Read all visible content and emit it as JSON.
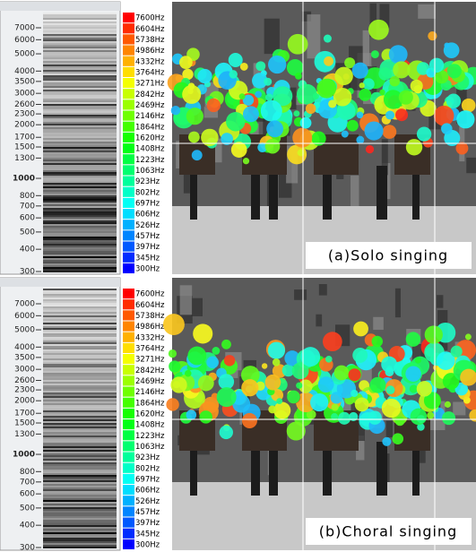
{
  "panels": [
    {
      "freq_ticks": [
        7000,
        6000,
        5000,
        4000,
        3500,
        3000,
        2600,
        2300,
        2000,
        1700,
        1500,
        1300,
        1000,
        800,
        700,
        600,
        500,
        400,
        300
      ],
      "legend": [
        "7600Hz",
        "6604Hz",
        "5738Hz",
        "4986Hz",
        "4332Hz",
        "3764Hz",
        "3271Hz",
        "2842Hz",
        "2469Hz",
        "2146Hz",
        "1864Hz",
        "1620Hz",
        "1408Hz",
        "1223Hz",
        "1063Hz",
        "923Hz",
        "802Hz",
        "697Hz",
        "606Hz",
        "526Hz",
        "457Hz",
        "397Hz",
        "345Hz",
        "300Hz"
      ],
      "caption": "(a)Solo singing"
    },
    {
      "freq_ticks": [
        7000,
        6000,
        5000,
        4000,
        3500,
        3000,
        2600,
        2300,
        2000,
        1700,
        1500,
        1300,
        1000,
        800,
        700,
        600,
        500,
        400,
        300
      ],
      "legend": [
        "7600Hz",
        "6604Hz",
        "5738Hz",
        "4986Hz",
        "4332Hz",
        "3764Hz",
        "3271Hz",
        "2842Hz",
        "2469Hz",
        "2146Hz",
        "1864Hz",
        "1620Hz",
        "1408Hz",
        "1223Hz",
        "1063Hz",
        "923Hz",
        "802Hz",
        "697Hz",
        "606Hz",
        "526Hz",
        "457Hz",
        "397Hz",
        "345Hz",
        "300Hz"
      ],
      "caption": "(b)Choral singing"
    }
  ]
}
